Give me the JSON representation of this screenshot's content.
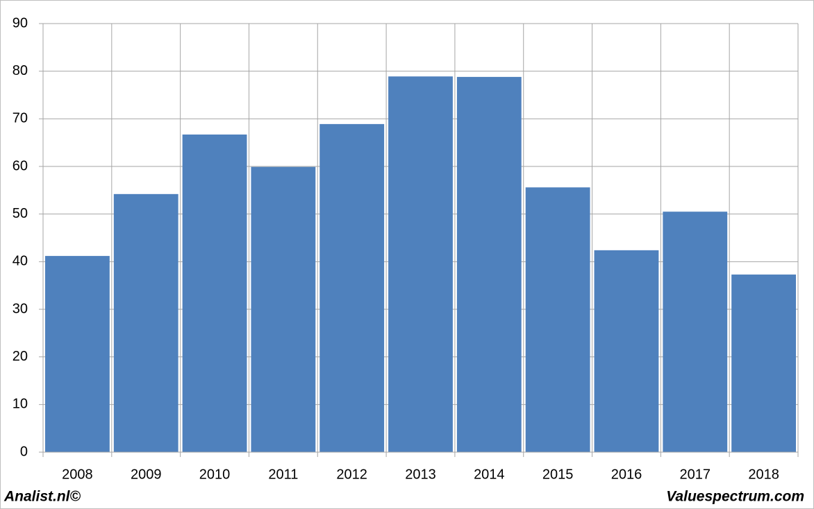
{
  "chart_data": {
    "type": "bar",
    "categories": [
      "2008",
      "2009",
      "2010",
      "2011",
      "2012",
      "2013",
      "2014",
      "2015",
      "2016",
      "2017",
      "2018"
    ],
    "values": [
      41.2,
      54.2,
      66.7,
      59.9,
      68.9,
      78.9,
      78.8,
      55.6,
      42.4,
      50.5,
      37.3
    ],
    "color": "#4f81bd",
    "ylim": [
      0,
      90
    ],
    "yticks": [
      0,
      10,
      20,
      30,
      40,
      50,
      60,
      70,
      80,
      90
    ],
    "grid": true,
    "credits": [
      "Analist.nl©",
      "Valuespectrum.com"
    ]
  }
}
